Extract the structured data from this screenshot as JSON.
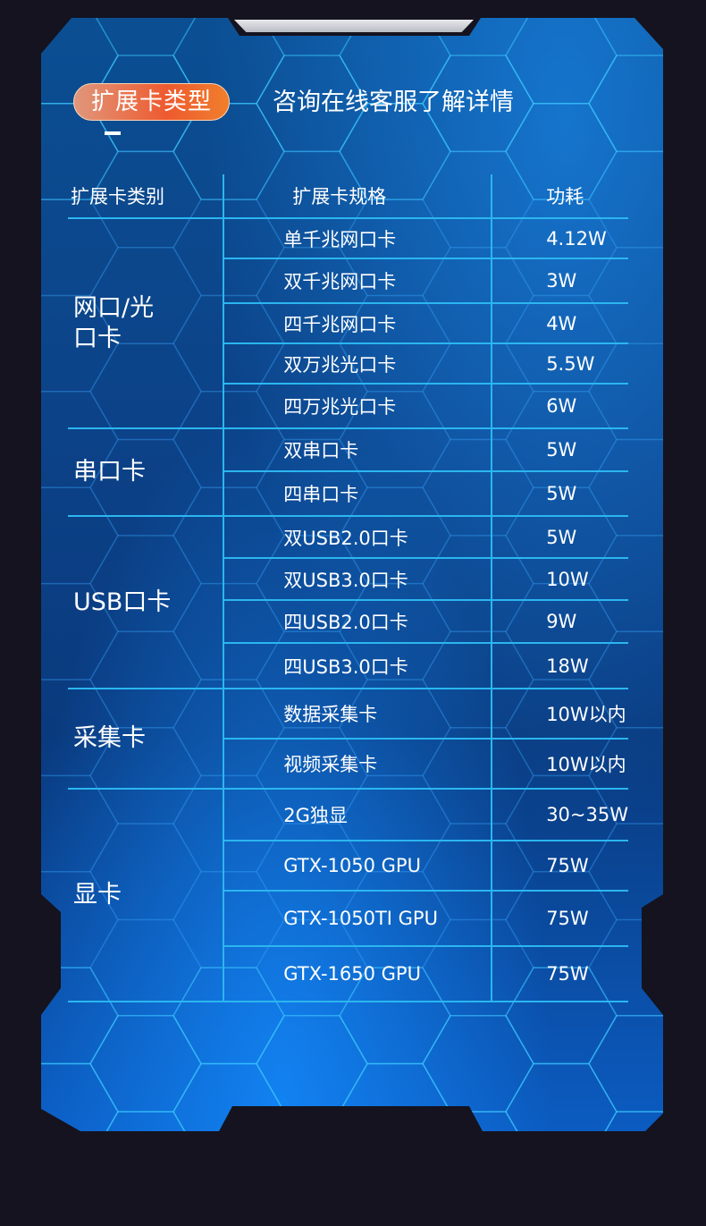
{
  "header": {
    "badge": "扩展卡类型",
    "subtitle": "咨询在线客服了解详情"
  },
  "table": {
    "columns": [
      "扩展卡类别",
      "扩展卡规格",
      "功耗"
    ],
    "groups": [
      {
        "category": "网口/光口卡",
        "rows": [
          [
            "单千兆网口卡",
            "4.12W"
          ],
          [
            "双千兆网口卡",
            "3W"
          ],
          [
            "四千兆网口卡",
            "4W"
          ],
          [
            "双万兆光口卡",
            "5.5W"
          ],
          [
            "四万兆光口卡",
            "6W"
          ]
        ]
      },
      {
        "category": "串口卡",
        "rows": [
          [
            "双串口卡",
            "5W"
          ],
          [
            "四串口卡",
            "5W"
          ]
        ]
      },
      {
        "category": "USB口卡",
        "rows": [
          [
            "双USB2.0口卡",
            "5W"
          ],
          [
            "双USB3.0口卡",
            "10W"
          ],
          [
            "四USB2.0口卡",
            "9W"
          ],
          [
            "四USB3.0口卡",
            "18W"
          ]
        ]
      },
      {
        "category": "采集卡",
        "rows": [
          [
            "数据采集卡",
            "10W以内"
          ],
          [
            "视频采集卡",
            "10W以内"
          ]
        ]
      },
      {
        "category": "显卡",
        "rows": [
          [
            "2G独显",
            "30~35W"
          ],
          [
            "GTX-1050 GPU",
            "75W"
          ],
          [
            "GTX-1050TI GPU",
            "75W"
          ],
          [
            "GTX-1650 GPU",
            "75W"
          ]
        ]
      }
    ]
  },
  "colors": {
    "background": "#14131f",
    "panel": "#0b4f93",
    "line": "#2bb6f0",
    "badge": "#ee5a2f"
  }
}
